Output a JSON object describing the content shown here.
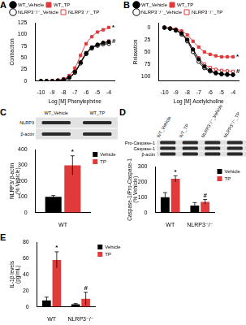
{
  "chart_data": [
    {
      "type": "line",
      "title": "A",
      "x_label": "Log [M] Phenylephrine",
      "y_label": "Contraction",
      "x": [
        -10,
        -9.5,
        -9,
        -8.5,
        -8,
        -7.5,
        -7,
        -6.5,
        -6,
        -5.5,
        -5,
        -4.5,
        -4
      ],
      "xlim": [
        -10.5,
        -3.5
      ],
      "xticks": [
        -10,
        -9,
        -8,
        -7,
        -6,
        -5,
        -4
      ],
      "ylim": [
        0,
        125
      ],
      "yticks": [
        0,
        25,
        50,
        75,
        100,
        125
      ],
      "grid": false,
      "legend": "upper left",
      "series": [
        {
          "name": "WT_Vehicle",
          "color": "#000000",
          "marker": "circle",
          "values": [
            0,
            0,
            0,
            1,
            3,
            8,
            20,
            40,
            60,
            72,
            78,
            82,
            84
          ]
        },
        {
          "name": "WT_TP",
          "color": "#e03a3a",
          "marker": "square",
          "values": [
            0,
            0,
            1,
            2,
            5,
            12,
            28,
            55,
            80,
            95,
            105,
            110,
            115
          ],
          "annotations": [
            null,
            null,
            null,
            null,
            null,
            null,
            null,
            null,
            null,
            null,
            null,
            null,
            "*"
          ]
        },
        {
          "name": "NLRP3⁻/⁻_Vehicle",
          "color": "#000000",
          "marker": "open_circle",
          "values": [
            0,
            0,
            0,
            1,
            3,
            7,
            18,
            38,
            58,
            70,
            76,
            79,
            80
          ]
        },
        {
          "name": "NLRP3⁻/⁻_TP",
          "color": "#e03a3a",
          "marker": "open_square",
          "values": [
            0,
            0,
            0,
            1,
            3,
            8,
            19,
            40,
            60,
            72,
            78,
            82,
            86
          ],
          "annotations": [
            null,
            null,
            null,
            null,
            null,
            null,
            null,
            null,
            null,
            null,
            null,
            null,
            "#"
          ]
        }
      ]
    },
    {
      "type": "line",
      "title": "B",
      "x_label": "Log [M] Acetylcholine",
      "y_label": "Relaxation",
      "x": [
        -10,
        -9.5,
        -9,
        -8.5,
        -8,
        -7.5,
        -7,
        -6.5,
        -6,
        -5.5,
        -5,
        -4.5,
        -4
      ],
      "xlim": [
        -10.5,
        -3.5
      ],
      "xticks": [
        -10,
        -9,
        -8,
        -7,
        -6,
        -5,
        -4
      ],
      "ylim": [
        110,
        -10
      ],
      "yticks": [
        0,
        25,
        50,
        75,
        100
      ],
      "grid": false,
      "legend": "upper left",
      "series": [
        {
          "name": "WT_Vehicle",
          "color": "#000000",
          "marker": "circle",
          "values": [
            0,
            2,
            5,
            12,
            25,
            45,
            65,
            80,
            88,
            93,
            95,
            96,
            97
          ]
        },
        {
          "name": "WT_TP",
          "color": "#e03a3a",
          "marker": "square",
          "values": [
            0,
            1,
            3,
            7,
            15,
            28,
            40,
            50,
            55,
            58,
            60,
            60,
            60
          ],
          "annotations": [
            null,
            null,
            null,
            null,
            null,
            null,
            null,
            null,
            null,
            null,
            null,
            null,
            "*"
          ]
        },
        {
          "name": "NLRP3⁻/⁻_Vehicle",
          "color": "#000000",
          "marker": "open_circle",
          "values": [
            0,
            2,
            6,
            14,
            28,
            50,
            70,
            83,
            90,
            94,
            96,
            97,
            97
          ]
        },
        {
          "name": "NLRP3⁻/⁻_TP",
          "color": "#e03a3a",
          "marker": "open_square",
          "values": [
            0,
            2,
            5,
            12,
            25,
            45,
            62,
            75,
            82,
            86,
            88,
            89,
            90
          ],
          "annotations": [
            null,
            null,
            null,
            null,
            null,
            null,
            null,
            null,
            null,
            null,
            null,
            null,
            "#"
          ]
        }
      ]
    },
    {
      "type": "bar",
      "title": "C",
      "y_label": "NLRP3/ β-actin (% Vehicle)",
      "categories": [
        "WT"
      ],
      "ylim": [
        0,
        400
      ],
      "yticks": [
        0,
        100,
        200,
        300,
        400
      ],
      "grid": false,
      "legend": "upper right",
      "series": [
        {
          "name": "Vehicle",
          "color": "#000000",
          "values": [
            100
          ],
          "errors": [
            8
          ]
        },
        {
          "name": "TP",
          "color": "#e03a3a",
          "values": [
            300
          ],
          "errors": [
            60
          ],
          "annotations": [
            "*"
          ]
        }
      ],
      "blot": {
        "lanes": [
          "WT_Vehicle",
          "WT_TP"
        ],
        "bands": [
          "NLRP3",
          "β-actin"
        ]
      }
    },
    {
      "type": "bar",
      "title": "D",
      "y_label": "Caspase-1/Pro-Caspase-1 (% Vehicle)",
      "categories": [
        "WT",
        "NLRP3⁻/⁻"
      ],
      "ylim": [
        0,
        300
      ],
      "yticks": [
        0,
        100,
        200,
        300
      ],
      "grid": false,
      "legend": "upper right",
      "series": [
        {
          "name": "Vehicle",
          "color": "#000000",
          "values": [
            100,
            45
          ],
          "errors": [
            30,
            20
          ]
        },
        {
          "name": "TP",
          "color": "#e03a3a",
          "values": [
            220,
            70
          ],
          "errors": [
            20,
            15
          ],
          "annotations": [
            "*",
            "#"
          ]
        }
      ],
      "blot": {
        "lanes": [
          "WT_Vehicle",
          "WT_TP",
          "NLRP3⁻/⁻_Vehicle",
          "NLRP3⁻/⁻_TP"
        ],
        "bands": [
          "Pro-Caspase-1",
          "Caspase-1",
          "β-actin"
        ]
      }
    },
    {
      "type": "bar",
      "title": "E",
      "y_label": "IL-1β levels (pg/mL)",
      "categories": [
        "WT",
        "NLRP3⁻/⁻"
      ],
      "ylim": [
        0,
        80
      ],
      "yticks": [
        0,
        20,
        40,
        60,
        80
      ],
      "grid": false,
      "legend": "upper right",
      "series": [
        {
          "name": "Vehicle",
          "color": "#000000",
          "values": [
            8,
            3
          ],
          "errors": [
            4,
            1
          ]
        },
        {
          "name": "TP",
          "color": "#e03a3a",
          "values": [
            58,
            10
          ],
          "errors": [
            10,
            8
          ],
          "annotations": [
            "*",
            "#"
          ]
        }
      ]
    }
  ]
}
